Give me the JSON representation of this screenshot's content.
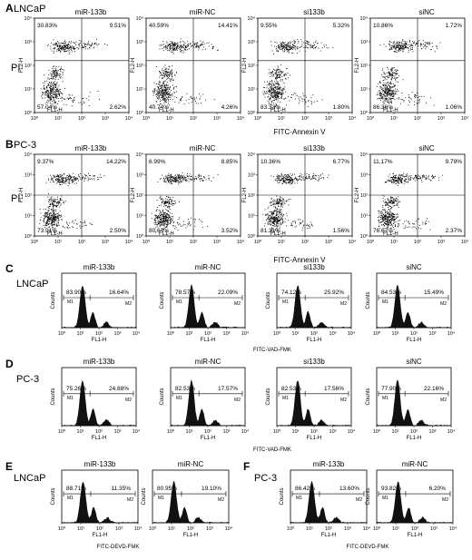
{
  "panelA": {
    "letter": "A",
    "cell": "LNCaP",
    "ylabel": "PI",
    "xlabel": "FITC-Annexin V",
    "plots": [
      {
        "title": "miR-133b",
        "ul": "30.83%",
        "ur": "9.51%",
        "ll": "57.04%",
        "lr": "2.62%"
      },
      {
        "title": "miR-NC",
        "ul": "40.59%",
        "ur": "14.41%",
        "ll": "40.74%",
        "lr": "4.26%"
      },
      {
        "title": "si133b",
        "ul": "9.55%",
        "ur": "5.32%",
        "ll": "83.33%",
        "lr": "1.80%"
      },
      {
        "title": "siNC",
        "ul": "10.86%",
        "ur": "1.72%",
        "ll": "86.36%",
        "lr": "1.06%"
      }
    ]
  },
  "panelB": {
    "letter": "B",
    "cell": "PC-3",
    "ylabel": "PI",
    "xlabel": "FITC-Annexin V",
    "plots": [
      {
        "title": "miR-133b",
        "ul": "9.37%",
        "ur": "14.22%",
        "ll": "73.91%",
        "lr": "2.50%"
      },
      {
        "title": "miR-NC",
        "ul": "6.99%",
        "ur": "8.85%",
        "ll": "80.64%",
        "lr": "3.52%"
      },
      {
        "title": "si133b",
        "ul": "10.36%",
        "ur": "6.77%",
        "ll": "81.31%",
        "lr": "1.56%"
      },
      {
        "title": "siNC",
        "ul": "11.17%",
        "ur": "9.79%",
        "ll": "76.67%",
        "lr": "2.37%"
      }
    ]
  },
  "panelC": {
    "letter": "C",
    "cell": "LNCaP",
    "xlabel": "FITC-VAD-FMK",
    "plots": [
      {
        "title": "miR-133b",
        "m1": "83.90%",
        "m2": "16.64%"
      },
      {
        "title": "miR-NC",
        "m1": "78.57%",
        "m2": "22.09%"
      },
      {
        "title": "si133b",
        "m1": "74.12%",
        "m2": "25.92%"
      },
      {
        "title": "siNC",
        "m1": "84.53%",
        "m2": "15.49%"
      }
    ]
  },
  "panelD": {
    "letter": "D",
    "cell": "PC-3",
    "xlabel": "FITC-VAD-FMK",
    "plots": [
      {
        "title": "miR-133b",
        "m1": "75.26%",
        "m2": "24.88%"
      },
      {
        "title": "miR-NC",
        "m1": "82.53%",
        "m2": "17.57%"
      },
      {
        "title": "si133b",
        "m1": "82.53%",
        "m2": "17.56%"
      },
      {
        "title": "siNC",
        "m1": "77.90%",
        "m2": "22.16%"
      }
    ]
  },
  "panelE": {
    "letter": "E",
    "cell": "LNCaP",
    "xlabel": "FITC-DEVD-FMK",
    "plots": [
      {
        "title": "miR-133b",
        "m1": "88.71%",
        "m2": "11.35%"
      },
      {
        "title": "miR-NC",
        "m1": "80.95%",
        "m2": "19.10%"
      }
    ]
  },
  "panelF": {
    "letter": "F",
    "cell": "PC-3",
    "xlabel": "FITC-DEVD-FMK",
    "plots": [
      {
        "title": "miR-133b",
        "m1": "86.42%",
        "m2": "13.60%"
      },
      {
        "title": "miR-NC",
        "m1": "93.82%",
        "m2": "6.20%"
      }
    ]
  },
  "axes": {
    "dot_x": "FL1-H",
    "dot_y": "FL2-H",
    "hist_x": "FL1-H",
    "hist_y": "Counts",
    "gate1": "M1",
    "gate2": "M2",
    "decades": [
      "10⁰",
      "10¹",
      "10²",
      "10³",
      "10⁴"
    ]
  }
}
